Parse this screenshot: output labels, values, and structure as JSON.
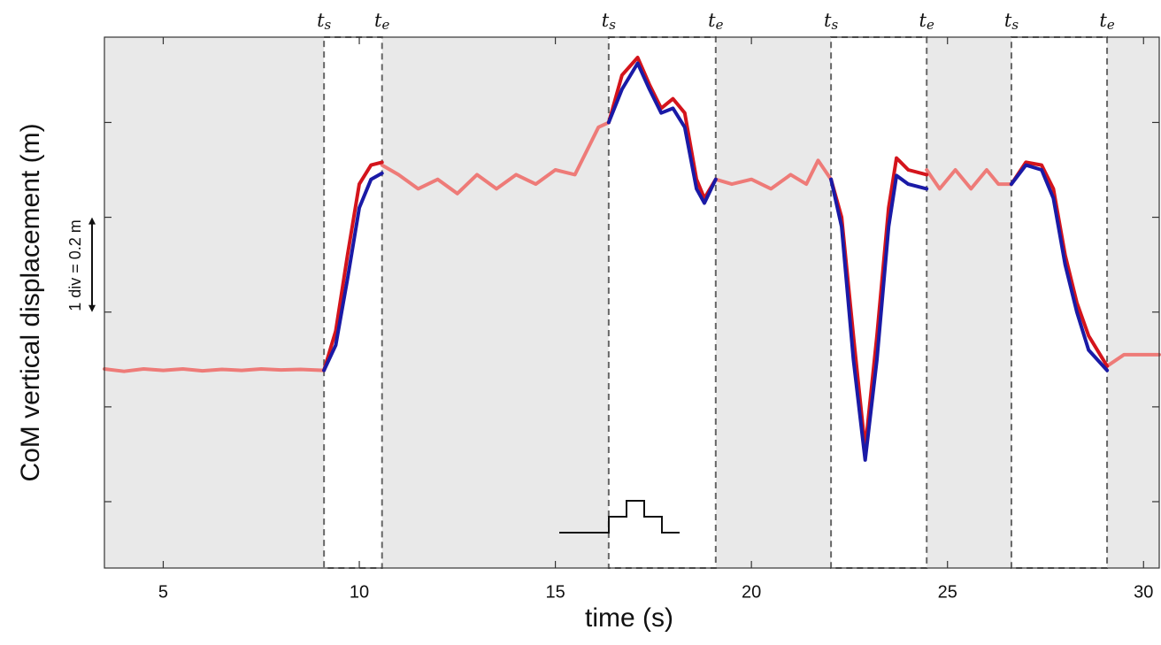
{
  "chart_data": {
    "type": "line",
    "xlabel": "time (s)",
    "ylabel": "CoM vertical displacement (m)",
    "scale_annotation": "1 div = 0.2 m",
    "phase_start_label": {
      "base": "t",
      "sub": "s"
    },
    "phase_end_label": {
      "base": "t",
      "sub": "e"
    },
    "phases": [
      {
        "start": 9.1,
        "end": 10.58
      },
      {
        "start": 16.36,
        "end": 19.09
      },
      {
        "start": 22.03,
        "end": 24.47
      },
      {
        "start": 26.63,
        "end": 29.07
      }
    ],
    "xlim": [
      3.5,
      30.4
    ],
    "xticks": [
      5,
      10,
      15,
      20,
      25,
      30
    ],
    "ylim": [
      -0.14,
      0.98
    ],
    "yticks": [
      0,
      0.2,
      0.4,
      0.6,
      0.8
    ],
    "x": [
      3.5,
      4,
      4.5,
      5,
      5.5,
      6,
      6.5,
      7,
      7.5,
      8,
      8.5,
      9.1,
      9.4,
      9.7,
      10.0,
      10.3,
      10.58,
      11.0,
      11.5,
      12.0,
      12.5,
      13.0,
      13.5,
      14.0,
      14.5,
      15.0,
      15.5,
      15.8,
      16.1,
      16.36,
      16.7,
      17.1,
      17.4,
      17.7,
      18.0,
      18.3,
      18.6,
      18.8,
      19.09,
      19.5,
      20.0,
      20.5,
      21.0,
      21.4,
      21.7,
      22.03,
      22.3,
      22.6,
      22.9,
      23.2,
      23.5,
      23.7,
      24.0,
      24.47,
      24.8,
      25.2,
      25.6,
      26.0,
      26.3,
      26.63,
      27.0,
      27.4,
      27.7,
      28.0,
      28.3,
      28.6,
      29.07,
      29.5,
      30.0,
      30.4
    ],
    "series": [
      {
        "color": "#ee7b78",
        "values": [
          0.28,
          0.275,
          0.28,
          0.277,
          0.28,
          0.276,
          0.279,
          0.277,
          0.28,
          0.278,
          0.279,
          0.277,
          null,
          null,
          null,
          null,
          0.71,
          0.69,
          0.66,
          0.68,
          0.65,
          0.69,
          0.66,
          0.69,
          0.67,
          0.7,
          0.69,
          0.74,
          0.79,
          0.8,
          null,
          null,
          null,
          null,
          null,
          null,
          null,
          null,
          0.68,
          0.67,
          0.68,
          0.66,
          0.69,
          0.67,
          0.72,
          0.68,
          null,
          null,
          null,
          null,
          null,
          null,
          null,
          0.7,
          0.66,
          0.7,
          0.66,
          0.7,
          0.67,
          0.67,
          null,
          null,
          null,
          null,
          null,
          null,
          0.286,
          0.31,
          0.31,
          0.31
        ]
      },
      {
        "color": "#d4141c",
        "values": [
          null,
          null,
          null,
          null,
          null,
          null,
          null,
          null,
          null,
          null,
          null,
          0.277,
          0.36,
          0.52,
          0.67,
          0.71,
          0.716,
          null,
          null,
          null,
          null,
          null,
          null,
          null,
          null,
          null,
          null,
          null,
          null,
          0.8,
          0.9,
          0.937,
          0.88,
          0.83,
          0.85,
          0.82,
          0.68,
          0.64,
          0.68,
          null,
          null,
          null,
          null,
          null,
          null,
          0.68,
          0.6,
          0.35,
          0.112,
          0.35,
          0.62,
          0.725,
          0.7,
          0.69,
          null,
          null,
          null,
          null,
          null,
          0.67,
          0.716,
          0.71,
          0.66,
          0.52,
          0.42,
          0.35,
          0.286,
          null,
          null,
          null
        ]
      },
      {
        "color": "#1a1aa6",
        "values": [
          null,
          null,
          null,
          null,
          null,
          null,
          null,
          null,
          null,
          null,
          null,
          0.277,
          0.33,
          0.47,
          0.62,
          0.68,
          0.693,
          null,
          null,
          null,
          null,
          null,
          null,
          null,
          null,
          null,
          null,
          null,
          null,
          0.8,
          0.87,
          0.925,
          0.87,
          0.82,
          0.83,
          0.79,
          0.66,
          0.63,
          0.68,
          null,
          null,
          null,
          null,
          null,
          null,
          0.68,
          0.58,
          0.3,
          0.088,
          0.3,
          0.58,
          0.688,
          0.67,
          0.66,
          null,
          null,
          null,
          null,
          null,
          0.67,
          0.71,
          0.7,
          0.64,
          0.5,
          0.4,
          0.32,
          0.277,
          null,
          null,
          null
        ]
      }
    ]
  }
}
